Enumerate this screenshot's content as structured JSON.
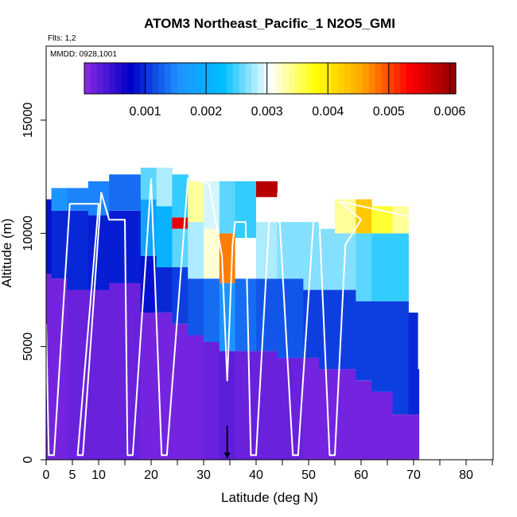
{
  "chart_data": {
    "type": "heatmap",
    "title": "ATOM3 Northeast_Pacific_1 N2O5_GMI",
    "subtitle_flights": "Flts: 1,2",
    "subtitle_dates": "MMDD: 0928,1001",
    "xlabel": "Latitude (deg N)",
    "ylabel": "Altitude (m)",
    "xlim": [
      -0.5,
      85
    ],
    "ylim": [
      0,
      18000
    ],
    "x_tick_labels": [
      "0",
      "5",
      "10",
      "20",
      "30",
      "40",
      "50",
      "60",
      "70",
      "80"
    ],
    "x_ticks": [
      0,
      5,
      10,
      20,
      30,
      40,
      50,
      60,
      70,
      80
    ],
    "y_tick_labels": [
      "0",
      "5000",
      "10000",
      "15000"
    ],
    "y_ticks": [
      0,
      5000,
      10000,
      15000
    ],
    "colorbar": {
      "range": [
        0,
        0.0061
      ],
      "tick_labels": [
        "0.001",
        "0.002",
        "0.003",
        "0.004",
        "0.005",
        "0.006"
      ],
      "ticks": [
        0.001,
        0.002,
        0.003,
        0.004,
        0.005,
        0.006
      ],
      "colors": [
        "#8a2be2",
        "#0000c8",
        "#1e90ff",
        "#00bfff",
        "#ffffff",
        "#ffff00",
        "#ffa500",
        "#ff0000",
        "#8b0000"
      ]
    },
    "columns": [
      {
        "x0": 0,
        "x1": 1,
        "top": 11500,
        "u": [
          [
            0,
            8200,
            0.02
          ],
          [
            8200,
            11500,
            0.14
          ]
        ]
      },
      {
        "x0": 1,
        "x1": 4,
        "top": 12000,
        "u": [
          [
            0,
            8000,
            0.02
          ],
          [
            8000,
            11000,
            0.16
          ],
          [
            11000,
            12000,
            0.26
          ]
        ]
      },
      {
        "x0": 4,
        "x1": 8,
        "top": 12000,
        "u": [
          [
            0,
            7500,
            0.03
          ],
          [
            7500,
            11000,
            0.16
          ],
          [
            11000,
            12000,
            0.24
          ]
        ]
      },
      {
        "x0": 8,
        "x1": 12,
        "top": 12300,
        "u": [
          [
            0,
            7500,
            0.03
          ],
          [
            7500,
            10800,
            0.15
          ],
          [
            10800,
            12300,
            0.24
          ]
        ]
      },
      {
        "x0": 12,
        "x1": 18,
        "top": 12600,
        "u": [
          [
            0,
            7800,
            0.03
          ],
          [
            7800,
            11000,
            0.15
          ],
          [
            11000,
            12600,
            0.22
          ]
        ]
      },
      {
        "x0": 18,
        "x1": 21,
        "top": 12900,
        "u": [
          [
            0,
            6500,
            0.02
          ],
          [
            6500,
            9000,
            0.14
          ],
          [
            9000,
            11500,
            0.3
          ],
          [
            11500,
            12900,
            0.42
          ]
        ]
      },
      {
        "x0": 21,
        "x1": 24,
        "top": 12900,
        "u": [
          [
            0,
            6500,
            0.02
          ],
          [
            6500,
            8500,
            0.16
          ],
          [
            8500,
            11200,
            0.34
          ],
          [
            11200,
            12900,
            0.46
          ]
        ]
      },
      {
        "x0": 24,
        "x1": 27,
        "top": 12600,
        "u": [
          [
            0,
            6000,
            0.02
          ],
          [
            6000,
            8500,
            0.18
          ],
          [
            8500,
            10200,
            0.42
          ],
          [
            10200,
            10700,
            0.9
          ],
          [
            10700,
            12600,
            0.4
          ]
        ]
      },
      {
        "x0": 27,
        "x1": 30,
        "top": 12300,
        "u": [
          [
            0,
            5500,
            0.02
          ],
          [
            5500,
            8000,
            0.2
          ],
          [
            8000,
            10500,
            0.46
          ],
          [
            10500,
            12300,
            0.55
          ]
        ]
      },
      {
        "x0": 30,
        "x1": 33,
        "top": 12300,
        "u": [
          [
            0,
            5200,
            0.03
          ],
          [
            5200,
            8000,
            0.22
          ],
          [
            8000,
            10200,
            0.52
          ],
          [
            10200,
            12300,
            0.48
          ]
        ]
      },
      {
        "x0": 33,
        "x1": 36,
        "top": 12300,
        "u": [
          [
            0,
            4800,
            0.04
          ],
          [
            4800,
            7800,
            0.26
          ],
          [
            7800,
            10000,
            0.78
          ],
          [
            10000,
            12300,
            0.42
          ]
        ]
      },
      {
        "x0": 36,
        "x1": 40,
        "top": 12300,
        "u": [
          [
            0,
            4800,
            0.03
          ],
          [
            4800,
            8000,
            0.22
          ],
          [
            8000,
            9800,
            0.5
          ],
          [
            9800,
            12300,
            0.4
          ]
        ]
      },
      {
        "x0": 40,
        "x1": 44,
        "top": 12300,
        "u": [
          [
            0,
            4800,
            0.03
          ],
          [
            4800,
            8000,
            0.2
          ],
          [
            8000,
            10500,
            0.46
          ],
          [
            10500,
            11600,
            0.5
          ],
          [
            11600,
            12300,
            0.95
          ]
        ]
      },
      {
        "x0": 44,
        "x1": 49,
        "top": 11800,
        "u": [
          [
            0,
            4500,
            0.03
          ],
          [
            4500,
            8000,
            0.2
          ],
          [
            8000,
            10500,
            0.44
          ],
          [
            10500,
            11800,
            0.5
          ]
        ]
      },
      {
        "x0": 49,
        "x1": 52,
        "top": 11800,
        "u": [
          [
            0,
            4500,
            0.02
          ],
          [
            4500,
            7500,
            0.18
          ],
          [
            7500,
            10500,
            0.44
          ],
          [
            10500,
            11800,
            0.5
          ]
        ]
      },
      {
        "x0": 52,
        "x1": 55,
        "top": 11500,
        "u": [
          [
            0,
            4000,
            0.02
          ],
          [
            4000,
            7500,
            0.18
          ],
          [
            7500,
            10200,
            0.44
          ],
          [
            10200,
            11500,
            0.5
          ]
        ]
      },
      {
        "x0": 55,
        "x1": 59,
        "top": 11500,
        "u": [
          [
            0,
            4000,
            0.02
          ],
          [
            4000,
            7500,
            0.18
          ],
          [
            7500,
            10000,
            0.44
          ],
          [
            10000,
            11500,
            0.55
          ]
        ]
      },
      {
        "x0": 59,
        "x1": 62,
        "top": 11500,
        "u": [
          [
            0,
            3500,
            0.02
          ],
          [
            3500,
            7000,
            0.18
          ],
          [
            7000,
            10000,
            0.42
          ],
          [
            10000,
            11500,
            0.7
          ]
        ]
      },
      {
        "x0": 62,
        "x1": 66,
        "top": 11200,
        "u": [
          [
            0,
            3000,
            0.02
          ],
          [
            3000,
            7000,
            0.18
          ],
          [
            7000,
            10000,
            0.4
          ],
          [
            10000,
            11200,
            0.6
          ]
        ]
      },
      {
        "x0": 66,
        "x1": 69,
        "top": 11200,
        "u": [
          [
            0,
            2000,
            0.02
          ],
          [
            2000,
            7000,
            0.18
          ],
          [
            7000,
            10000,
            0.4
          ],
          [
            10000,
            11200,
            0.55
          ]
        ]
      },
      {
        "x0": 69,
        "x1": 71,
        "top": 6500,
        "u": [
          [
            0,
            2000,
            0.02
          ],
          [
            2000,
            6500,
            0.16
          ]
        ]
      }
    ],
    "flight_track": [
      [
        0,
        6000
      ],
      [
        0.5,
        200
      ],
      [
        1.5,
        200
      ],
      [
        4.5,
        11300
      ],
      [
        10,
        11300
      ],
      [
        6,
        200
      ],
      [
        7,
        200
      ],
      [
        10.5,
        11800
      ],
      [
        12,
        10600
      ],
      [
        15,
        10600
      ],
      [
        15.5,
        200
      ],
      [
        16.5,
        200
      ],
      [
        20,
        12400
      ],
      [
        22,
        200
      ],
      [
        23,
        200
      ],
      [
        27,
        12400
      ],
      [
        31,
        12200
      ],
      [
        33.5,
        9000
      ],
      [
        34.5,
        3500
      ],
      [
        35.5,
        9500
      ],
      [
        36,
        10500
      ],
      [
        38,
        10500
      ],
      [
        39,
        200
      ],
      [
        40,
        200
      ],
      [
        42.5,
        10600
      ],
      [
        44.5,
        10500
      ],
      [
        47,
        200
      ],
      [
        48,
        200
      ],
      [
        51,
        10800
      ],
      [
        52,
        10800
      ],
      [
        54,
        200
      ],
      [
        55,
        200
      ],
      [
        57,
        9500
      ],
      [
        60,
        10600
      ],
      [
        56,
        11400
      ],
      [
        70,
        10700
      ],
      [
        71,
        6500
      ],
      [
        71,
        4000
      ]
    ],
    "arrow_marker": {
      "x": 34.5,
      "y_from": 1500,
      "y_to": 0
    }
  }
}
